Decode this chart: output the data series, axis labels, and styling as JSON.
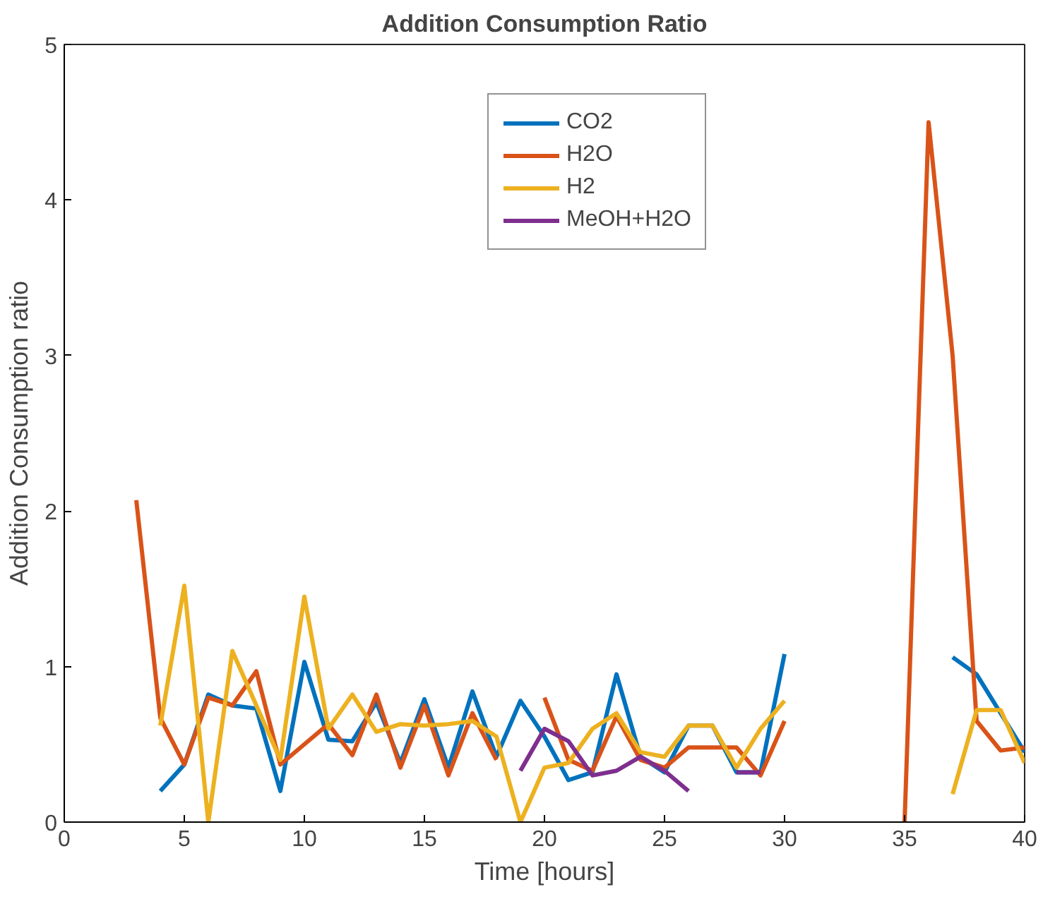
{
  "chart_data": {
    "type": "line",
    "title": "Addition Consumption Ratio",
    "xlabel": "Time [hours]",
    "ylabel": "Addition Consumption ratio",
    "x": [
      3,
      4,
      5,
      6,
      7,
      8,
      9,
      10,
      11,
      12,
      13,
      14,
      15,
      16,
      17,
      18,
      19,
      20,
      21,
      22,
      23,
      24,
      25,
      26,
      27,
      28,
      29,
      30,
      31,
      32,
      33,
      34,
      35,
      36,
      37,
      38,
      39,
      40
    ],
    "series": [
      {
        "name": "CO2",
        "color": "#0072bd",
        "values": [
          null,
          0.2,
          0.37,
          0.82,
          0.75,
          0.73,
          0.2,
          1.03,
          0.53,
          0.52,
          0.77,
          0.38,
          0.79,
          0.35,
          0.84,
          0.42,
          0.78,
          0.55,
          0.27,
          0.32,
          0.95,
          0.42,
          0.32,
          0.62,
          0.62,
          0.32,
          0.32,
          1.08,
          null,
          null,
          null,
          null,
          null,
          null,
          1.06,
          0.95,
          0.7,
          0.45
        ]
      },
      {
        "name": "H2O",
        "color": "#d95319",
        "values": [
          2.07,
          0.67,
          0.37,
          0.8,
          0.75,
          0.97,
          0.37,
          0.5,
          0.63,
          0.43,
          0.82,
          0.35,
          0.75,
          0.3,
          0.7,
          0.4,
          null,
          0.8,
          0.4,
          0.33,
          0.68,
          0.4,
          0.35,
          0.48,
          0.48,
          0.48,
          0.3,
          0.65,
          null,
          null,
          null,
          null,
          0,
          4.5,
          3.0,
          0.65,
          0.46,
          0.48
        ]
      },
      {
        "name": "H2",
        "color": "#edb120",
        "values": [
          null,
          0.62,
          1.52,
          0,
          1.1,
          0.75,
          0.4,
          1.45,
          0.6,
          0.82,
          0.58,
          0.63,
          0.62,
          0.63,
          0.65,
          0.55,
          0,
          0.35,
          0.38,
          0.6,
          0.7,
          0.45,
          0.42,
          0.62,
          0.62,
          0.35,
          0.6,
          0.78,
          null,
          null,
          null,
          null,
          null,
          null,
          0.18,
          0.72,
          0.72,
          0.38
        ]
      },
      {
        "name": "MeOH+H2O",
        "color": "#7e2f8e",
        "values": [
          null,
          null,
          null,
          null,
          null,
          null,
          null,
          null,
          null,
          null,
          null,
          null,
          null,
          null,
          null,
          null,
          0.33,
          0.6,
          0.52,
          0.3,
          0.33,
          0.42,
          0.33,
          0.2,
          null,
          0.32,
          0.32,
          null,
          null,
          null,
          null,
          null,
          null,
          null,
          null,
          null,
          null,
          null
        ]
      }
    ],
    "xlim": [
      0,
      40
    ],
    "xticks": [
      0,
      5,
      10,
      15,
      20,
      25,
      30,
      35,
      40
    ],
    "ylim": [
      0,
      5
    ],
    "yticks": [
      0,
      1,
      2,
      3,
      4,
      5
    ],
    "grid": false,
    "legend": "top right"
  }
}
